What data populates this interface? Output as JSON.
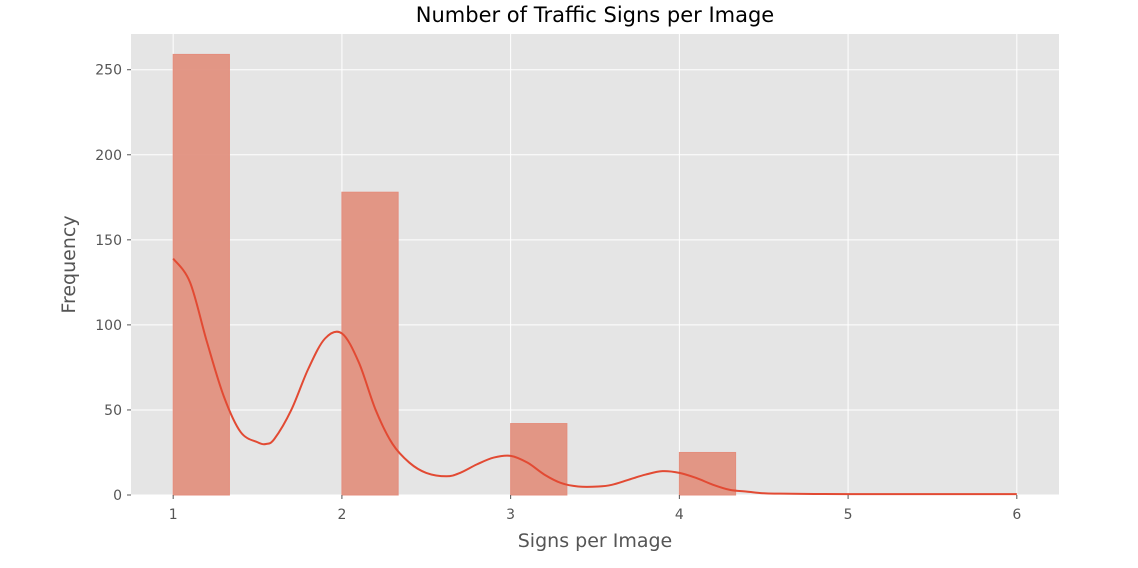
{
  "chart_data": {
    "type": "bar",
    "title": "Number of Traffic Signs per Image",
    "xlabel": "Signs per Image",
    "ylabel": "Frequency",
    "xlim": [
      0.75,
      6.25
    ],
    "ylim": [
      0,
      271
    ],
    "x_ticks": [
      1,
      2,
      3,
      4,
      5,
      6
    ],
    "x_tick_labels": [
      "1",
      "2",
      "3",
      "4",
      "5",
      "6"
    ],
    "y_ticks": [
      0,
      50,
      100,
      150,
      200,
      250
    ],
    "y_tick_labels": [
      "0",
      "50",
      "100",
      "150",
      "200",
      "250"
    ],
    "bin_width": 0.3333,
    "bars": [
      {
        "x": 1,
        "value": 259
      },
      {
        "x": 2,
        "value": 178
      },
      {
        "x": 3,
        "value": 42
      },
      {
        "x": 4,
        "value": 25
      },
      {
        "x": 5,
        "value": 0
      },
      {
        "x": 6,
        "value": 0
      }
    ],
    "kde": {
      "x": [
        1.0,
        1.1,
        1.2,
        1.3,
        1.4,
        1.5,
        1.55,
        1.6,
        1.7,
        1.8,
        1.9,
        2.0,
        2.1,
        2.2,
        2.3,
        2.4,
        2.5,
        2.62,
        2.7,
        2.8,
        2.9,
        3.0,
        3.1,
        3.2,
        3.3,
        3.4,
        3.52,
        3.6,
        3.7,
        3.8,
        3.9,
        4.0,
        4.1,
        4.2,
        4.3,
        4.4,
        4.5,
        4.6,
        4.8,
        5.0,
        5.5,
        6.0
      ],
      "y": [
        139,
        125,
        90,
        58,
        37,
        31,
        30,
        33,
        50,
        74,
        92,
        95,
        78,
        50,
        30,
        19,
        13,
        11,
        13,
        18,
        22,
        23,
        19,
        12,
        7,
        5,
        5,
        6,
        9,
        12,
        14,
        13,
        10,
        6,
        3,
        2,
        1,
        0.8,
        0.6,
        0.5,
        0.5,
        0.5
      ]
    },
    "grid": true,
    "legend": "none",
    "colors": {
      "plot_background": "#e5e5e5",
      "grid": "#ffffff",
      "bar_fill": "#e2917f",
      "bar_edge": "#e48e7d",
      "kde_line": "#e24a33",
      "tick_text": "#555555",
      "title_text": "#000000"
    }
  }
}
